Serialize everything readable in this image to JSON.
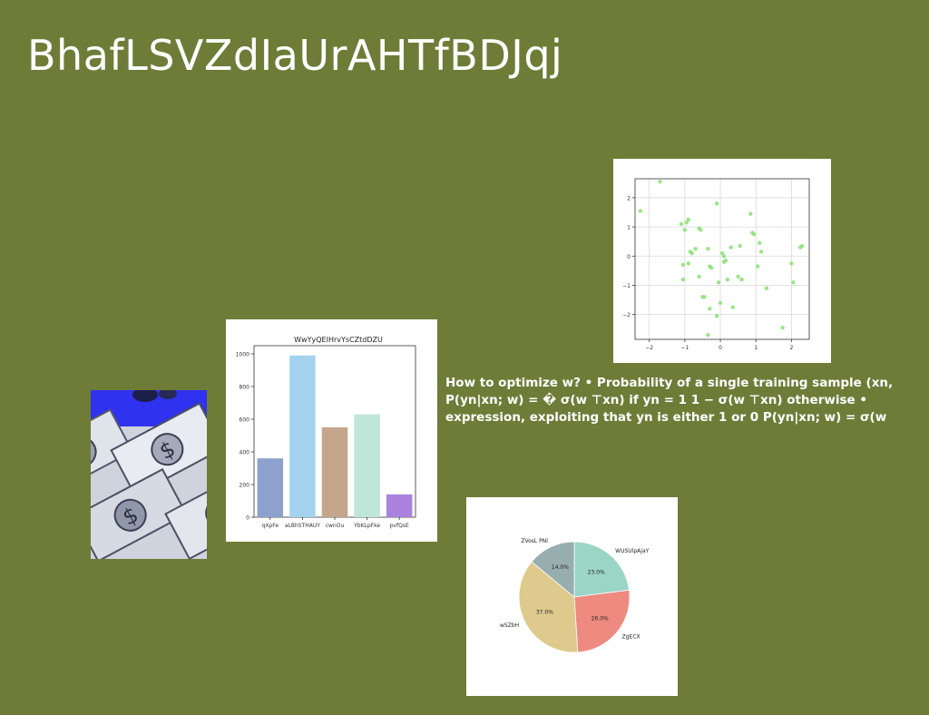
{
  "slide": {
    "title": "BhafLSVZdIaUrAHTfBDJqj",
    "body_text": "How to optimize w? • Probability of a single training sample (xn, P(yn|xn; w) = � σ(w ⊤xn) if yn = 1 1 − σ(w ⊤xn) otherwise • expression, exploiting that yn is either 1 or 0 P(yn|xn; w) = σ(w",
    "background_color": "#6e7c38"
  },
  "photo": {
    "icon": "money-bills-icon"
  },
  "chart_data": [
    {
      "type": "bar",
      "title": "WwYyQEIHrvYsCZtdDZU",
      "categories": [
        "qXpFe",
        "aLBhSTHAUY",
        "cwnOu",
        "YbKLpFke",
        "pvfQsE"
      ],
      "values": [
        360,
        990,
        550,
        630,
        140
      ],
      "colors": [
        "#8ea1cc",
        "#a3d2ee",
        "#c3a68c",
        "#bfe6d7",
        "#a983dd"
      ],
      "ylim": [
        0,
        1050
      ],
      "yticks": [
        0,
        200,
        400,
        600,
        800,
        1000
      ],
      "grid": false
    },
    {
      "type": "scatter",
      "x": [
        -2.25,
        -1.7,
        -1.1,
        -0.95,
        -0.9,
        -1.0,
        -0.85,
        -0.6,
        -0.55,
        -0.9,
        -0.7,
        -1.05,
        -0.8,
        -0.35,
        -0.45,
        -0.6,
        -1.05,
        -0.3,
        -0.25,
        -0.05,
        0.05,
        0.1,
        0.15,
        0.3,
        0.55,
        0.85,
        0.9,
        0.95,
        1.1,
        1.15,
        1.05,
        1.3,
        0.6,
        0.5,
        0.35,
        0.0,
        -0.1,
        -0.3,
        -0.35,
        -0.5,
        0.2,
        0.1,
        1.75,
        2.0,
        2.05,
        2.25,
        2.3,
        -0.1
      ],
      "y": [
        1.55,
        2.55,
        1.1,
        1.15,
        1.25,
        0.9,
        0.15,
        0.95,
        0.9,
        -0.25,
        0.25,
        -0.3,
        0.1,
        0.25,
        -1.4,
        -0.7,
        -0.8,
        -0.35,
        -0.4,
        -0.9,
        0.1,
        0.0,
        -0.15,
        0.3,
        0.35,
        1.45,
        0.8,
        0.75,
        0.45,
        0.15,
        -0.35,
        -1.1,
        -0.8,
        -0.7,
        -1.75,
        -1.6,
        -2.05,
        -1.8,
        -2.7,
        -1.4,
        -0.8,
        -0.2,
        -2.45,
        -0.25,
        -0.9,
        0.3,
        0.35,
        1.8
      ],
      "color": "#90e27a",
      "xlim": [
        -2.4,
        2.5
      ],
      "ylim": [
        -2.85,
        2.65
      ],
      "xticks": [
        -2,
        -1,
        0,
        1,
        2
      ],
      "yticks": [
        -2,
        -1,
        0,
        1,
        2
      ],
      "grid": true
    },
    {
      "type": "pie",
      "labels": [
        "WUSUlpAjaY",
        "ZgECX",
        "wSZbH",
        "ZVosL PNl"
      ],
      "values": [
        23.0,
        26.0,
        37.0,
        14.0
      ],
      "autopct": [
        "23.0%",
        "26.0%",
        "37.0%",
        "14.0%"
      ],
      "colors": [
        "#9bd5c6",
        "#ee8a80",
        "#dfca8e",
        "#98aeae"
      ]
    }
  ]
}
